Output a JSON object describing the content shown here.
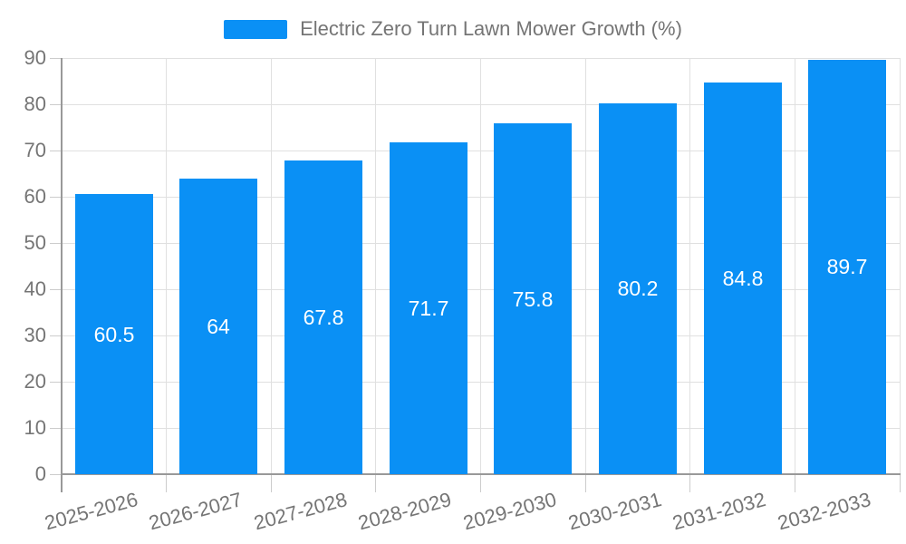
{
  "legend": {
    "label": "Electric Zero Turn Lawn Mower Growth (%)"
  },
  "chart_data": {
    "type": "bar",
    "title": "Electric Zero Turn Lawn Mower Growth (%)",
    "legend_entries": [
      "Electric Zero Turn Lawn Mower Growth (%)"
    ],
    "legend_position": "top-center",
    "categories": [
      "2025-2026",
      "2026-2027",
      "2027-2028",
      "2028-2029",
      "2029-2030",
      "2030-2031",
      "2031-2032",
      "2032-2033"
    ],
    "values": [
      60.5,
      64,
      67.8,
      71.7,
      75.8,
      80.2,
      84.8,
      89.7
    ],
    "value_labels": [
      "60.5",
      "64",
      "67.8",
      "71.7",
      "75.8",
      "80.2",
      "84.8",
      "89.7"
    ],
    "yticks": [
      0,
      10,
      20,
      30,
      40,
      50,
      60,
      70,
      80,
      90
    ],
    "ylim": [
      0,
      90
    ],
    "xlabel": "",
    "ylabel": "",
    "grid": true,
    "x_label_rotation_deg": -15,
    "colors": {
      "bar": "#0a90f5",
      "bar_label": "#ffffff",
      "grid": "#e0e0e0",
      "tick": "#cccccc",
      "axis_line": "#999999",
      "text": "#757575",
      "background": "#ffffff"
    }
  }
}
